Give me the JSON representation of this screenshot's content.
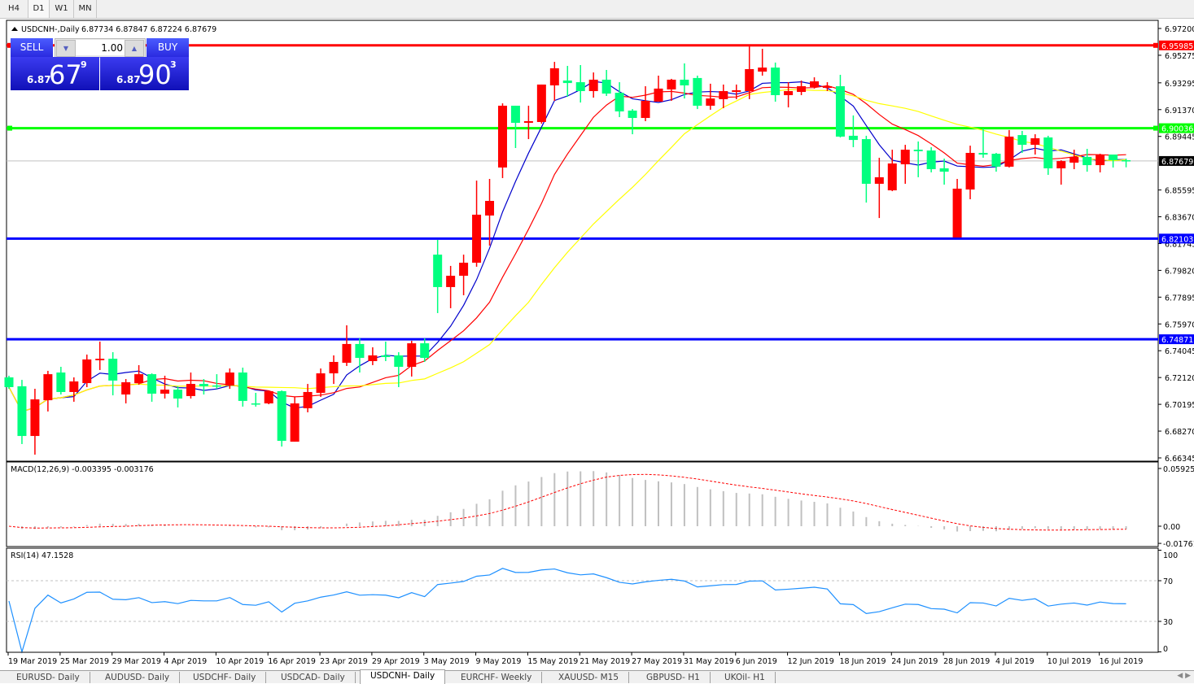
{
  "timeframes": [
    "H4",
    "D1",
    "W1",
    "MN"
  ],
  "active_timeframe": "D1",
  "chart_header": {
    "symbol_label": "USDCNH-,Daily",
    "ohlc": "6.87734 6.87847 6.87224 6.87679"
  },
  "trade_panel": {
    "sell_label": "SELL",
    "buy_label": "BUY",
    "lot_value": "1.00",
    "sell_price": {
      "prefix": "6.87",
      "big": "67",
      "sup": "9"
    },
    "buy_price": {
      "prefix": "6.87",
      "big": "90",
      "sup": "3"
    }
  },
  "colors": {
    "bull_candle": "#ff0000",
    "bear_candle": "#00ff7f",
    "ma_fast": "#0000cc",
    "ma_mid": "#ff0000",
    "ma_slow": "#ffff00",
    "macd_hist": "#c0c0c0",
    "macd_signal": "#ff0000",
    "rsi_line": "#1e90ff"
  },
  "price_axis_ticks": [
    "6.97200",
    "6.95275",
    "6.93295",
    "6.91370",
    "6.89445",
    "6.85595",
    "6.83670",
    "6.81745",
    "6.79820",
    "6.77895",
    "6.75970",
    "6.74045",
    "6.72120",
    "6.70195",
    "6.68270",
    "6.66345"
  ],
  "horizontal_lines": [
    {
      "price": 6.95985,
      "label": "6.95985",
      "color": "#ff0000"
    },
    {
      "price": 6.90036,
      "label": "6.90036",
      "color": "#00ff00"
    },
    {
      "price": 6.82103,
      "label": "6.82103",
      "color": "#0000ff"
    },
    {
      "price": 6.74871,
      "label": "6.74871",
      "color": "#0000ff"
    }
  ],
  "current_price": {
    "price": 6.87679,
    "label": "6.87679"
  },
  "macd": {
    "title": "MACD(12,26,9) -0.003395 -0.003176",
    "ticks": [
      "0.059256",
      "0.00",
      "-0.01761"
    ]
  },
  "rsi": {
    "title": "RSI(14) 47.1528",
    "ticks": [
      "100",
      "70",
      "30",
      "0"
    ],
    "levels": [
      70,
      30
    ]
  },
  "date_labels": [
    "19 Mar 2019",
    "25 Mar 2019",
    "29 Mar 2019",
    "4 Apr 2019",
    "10 Apr 2019",
    "16 Apr 2019",
    "23 Apr 2019",
    "29 Apr 2019",
    "3 May 2019",
    "9 May 2019",
    "15 May 2019",
    "21 May 2019",
    "27 May 2019",
    "31 May 2019",
    "6 Jun 2019",
    "12 Jun 2019",
    "18 Jun 2019",
    "24 Jun 2019",
    "28 Jun 2019",
    "4 Jul 2019",
    "10 Jul 2019",
    "16 Jul 2019"
  ],
  "tabs": [
    "EURUSD- Daily",
    "AUDUSD- Daily",
    "USDCHF- Daily",
    "USDCAD- Daily",
    "USDCNH- Daily",
    "EURCHF- Weekly",
    "XAUUSD- M15",
    "GBPUSD- H1",
    "UKOil- H1"
  ],
  "active_tab": 4,
  "chart_data": {
    "type": "candlestick",
    "ylim": [
      6.66345,
      6.972
    ],
    "ohlc": [
      [
        6.7213,
        6.7225,
        6.7131,
        6.7143
      ],
      [
        6.7149,
        6.7195,
        6.6734,
        6.6792
      ],
      [
        6.6792,
        6.7131,
        6.6658,
        6.7055
      ],
      [
        6.7049,
        6.726,
        6.6968,
        6.7236
      ],
      [
        6.7248,
        6.7289,
        6.709,
        6.7108
      ],
      [
        6.7108,
        6.7213,
        6.7038,
        6.7184
      ],
      [
        6.7172,
        6.7377,
        6.7143,
        6.7342
      ],
      [
        6.7336,
        6.747,
        6.7266,
        6.7347
      ],
      [
        6.7347,
        6.7394,
        6.7084,
        6.719
      ],
      [
        6.709,
        6.7201,
        6.7026,
        6.7178
      ],
      [
        6.7172,
        6.7301,
        6.716,
        6.7236
      ],
      [
        6.7236,
        6.7242,
        6.7038,
        6.7096
      ],
      [
        6.7096,
        6.7225,
        6.7061,
        6.7125
      ],
      [
        6.7125,
        6.7149,
        6.6997,
        6.7061
      ],
      [
        6.7079,
        6.7248,
        6.7061,
        6.7166
      ],
      [
        6.7166,
        6.7201,
        6.709,
        6.7149
      ],
      [
        6.7155,
        6.7236,
        6.7131,
        6.7149
      ],
      [
        6.7155,
        6.7277,
        6.7131,
        6.7248
      ],
      [
        6.7248,
        6.7283,
        6.7003,
        6.7044
      ],
      [
        6.7026,
        6.7102,
        6.7003,
        6.702
      ],
      [
        6.7026,
        6.7119,
        6.702,
        6.7114
      ],
      [
        6.7114,
        6.7119,
        6.6716,
        6.6757
      ],
      [
        6.6751,
        6.7073,
        6.6751,
        6.7026
      ],
      [
        6.6991,
        6.7166,
        6.6962,
        6.7108
      ],
      [
        6.7102,
        6.7277,
        6.7073,
        6.7242
      ],
      [
        6.7242,
        6.7371,
        6.7166,
        6.7324
      ],
      [
        6.7318,
        6.7587,
        6.7295,
        6.7453
      ],
      [
        6.7453,
        6.7493,
        6.7248,
        6.7353
      ],
      [
        6.733,
        6.7429,
        6.7301,
        6.7371
      ],
      [
        6.7371,
        6.747,
        6.733,
        6.7359
      ],
      [
        6.7371,
        6.7394,
        6.7143,
        6.7289
      ],
      [
        6.7289,
        6.7476,
        6.7219,
        6.7458
      ],
      [
        6.7458,
        6.7493,
        6.7324,
        6.7353
      ],
      [
        6.8095,
        6.8201,
        6.7675,
        6.7862
      ],
      [
        6.7862,
        6.8014,
        6.771,
        6.7943
      ],
      [
        6.7943,
        6.8095,
        6.7803,
        6.8037
      ],
      [
        6.8037,
        6.8627,
        6.8008,
        6.8382
      ],
      [
        6.8376,
        6.8639,
        6.816,
        6.8481
      ],
      [
        6.8721,
        6.9182,
        6.8645,
        6.9165
      ],
      [
        6.9165,
        6.9165,
        6.8861,
        6.9042
      ],
      [
        6.9042,
        6.9165,
        6.8925,
        6.9054
      ],
      [
        6.9048,
        6.9317,
        6.9036,
        6.9317
      ],
      [
        6.9311,
        6.948,
        6.92,
        6.9434
      ],
      [
        6.9346,
        6.9451,
        6.9229,
        6.9328
      ],
      [
        6.9334,
        6.9457,
        6.9188,
        6.927
      ],
      [
        6.927,
        6.9404,
        6.9223,
        6.9352
      ],
      [
        6.9352,
        6.9422,
        6.9235,
        6.9252
      ],
      [
        6.9258,
        6.9334,
        6.9083,
        6.9124
      ],
      [
        6.913,
        6.9141,
        6.896,
        6.9077
      ],
      [
        6.9077,
        6.9305,
        6.9054,
        6.92
      ],
      [
        6.9194,
        6.9381,
        6.9194,
        6.9288
      ],
      [
        6.9282,
        6.9358,
        6.92,
        6.9352
      ],
      [
        6.9352,
        6.9469,
        6.9217,
        6.9311
      ],
      [
        6.9364,
        6.9381,
        6.9141,
        6.9165
      ],
      [
        6.9165,
        6.9323,
        6.9136,
        6.9217
      ],
      [
        6.9212,
        6.9317,
        6.9147,
        6.927
      ],
      [
        6.9264,
        6.9317,
        6.9212,
        6.9276
      ],
      [
        6.927,
        6.9591,
        6.9212,
        6.9428
      ],
      [
        6.941,
        6.9574,
        6.9381,
        6.9439
      ],
      [
        6.9439,
        6.9475,
        6.9194,
        6.9241
      ],
      [
        6.9241,
        6.9334,
        6.9153,
        6.927
      ],
      [
        6.9264,
        6.9346,
        6.9241,
        6.9305
      ],
      [
        6.9299,
        6.9369,
        6.9288,
        6.934
      ],
      [
        6.9293,
        6.9334,
        6.927,
        6.9305
      ],
      [
        6.9305,
        6.9387,
        6.8937,
        6.8943
      ],
      [
        6.8949,
        6.9095,
        6.8867,
        6.8919
      ],
      [
        6.8925,
        6.8949,
        6.8469,
        6.8604
      ],
      [
        6.8604,
        6.8791,
        6.8358,
        6.8651
      ],
      [
        6.8557,
        6.8849,
        6.8551,
        6.875
      ],
      [
        6.8744,
        6.8884,
        6.8604,
        6.8849
      ],
      [
        6.8849,
        6.8908,
        6.8651,
        6.8838
      ],
      [
        6.8843,
        6.8867,
        6.8686,
        6.8709
      ],
      [
        6.8715,
        6.8785,
        6.8598,
        6.8691
      ],
      [
        6.8218,
        6.8639,
        6.8218,
        6.8569
      ],
      [
        6.8563,
        6.8878,
        6.8493,
        6.8826
      ],
      [
        6.8826,
        6.9001,
        6.8791,
        6.8814
      ],
      [
        6.882,
        6.8826,
        6.8691,
        6.8727
      ],
      [
        6.8727,
        6.899,
        6.8721,
        6.8943
      ],
      [
        6.8954,
        6.8984,
        6.8826,
        6.8884
      ],
      [
        6.8884,
        6.896,
        6.8814,
        6.8931
      ],
      [
        6.8937,
        6.8949,
        6.8668,
        6.8715
      ],
      [
        6.8715,
        6.8773,
        6.8598,
        6.8767
      ],
      [
        6.8756,
        6.8849,
        6.8709,
        6.8797
      ],
      [
        6.8797,
        6.8855,
        6.8691,
        6.8738
      ],
      [
        6.8738,
        6.882,
        6.8686,
        6.8814
      ],
      [
        6.8814,
        6.8814,
        6.8721,
        6.8773
      ],
      [
        6.87734,
        6.87847,
        6.87224,
        6.87679
      ]
    ]
  }
}
